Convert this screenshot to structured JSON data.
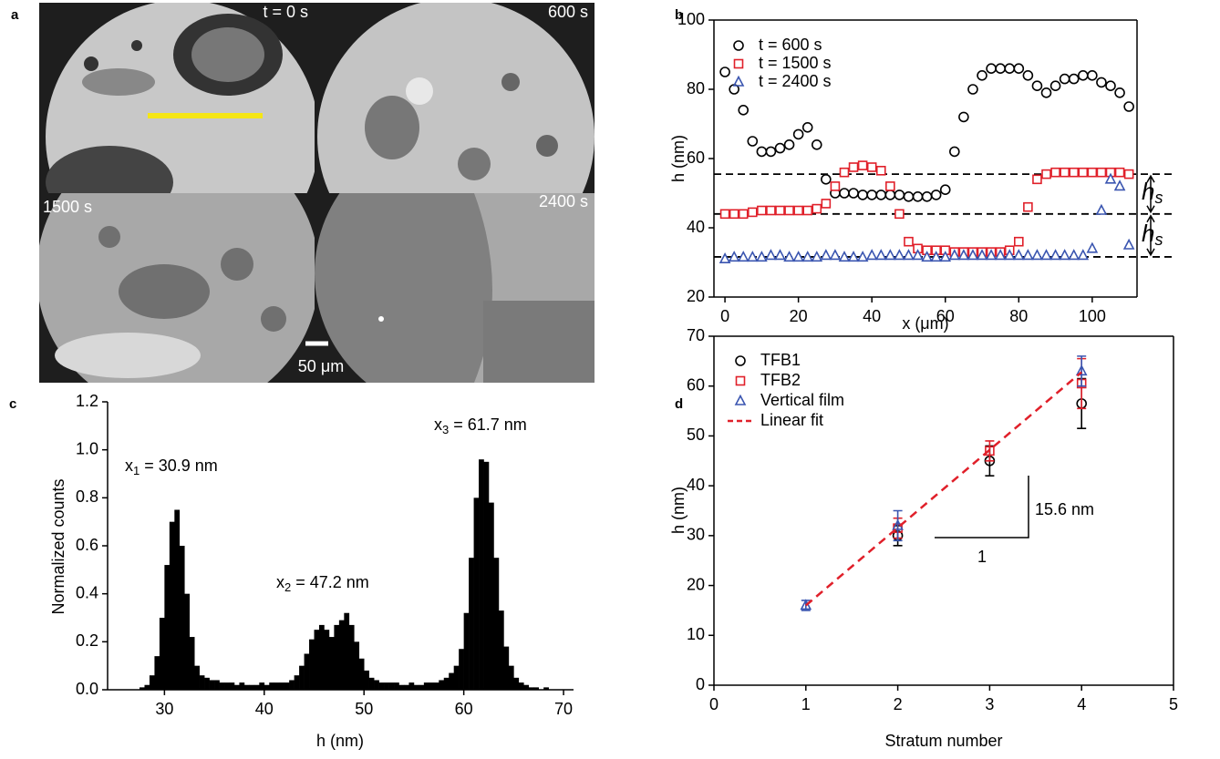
{
  "panel_a": {
    "panel_label": "a",
    "time_labels": [
      "t = 0 s",
      "600 s",
      "1500 s",
      "2400 s"
    ],
    "scale_bar": "50 μm"
  },
  "chart_data": [
    {
      "type": "scatter",
      "panel_label": "b",
      "xlabel": "x (μm)",
      "ylabel": "h (nm)",
      "xlim": [
        -3,
        112.2
      ],
      "ylim": [
        20,
        100
      ],
      "xticks": [
        0,
        20,
        40,
        60,
        80,
        100
      ],
      "yticks": [
        20,
        40,
        60,
        80,
        100
      ],
      "legend": "upper left",
      "x": [
        0,
        2.5,
        5,
        7.5,
        10,
        12.5,
        15,
        17.5,
        20,
        22.5,
        25,
        27.5,
        30,
        32.5,
        35,
        37.5,
        40,
        42.5,
        45,
        47.5,
        50,
        52.5,
        55,
        57.5,
        60,
        62.5,
        65,
        67.5,
        70,
        72.5,
        75,
        77.5,
        80,
        82.5,
        85,
        87.5,
        90,
        92.5,
        95,
        97.5,
        100,
        102.5,
        105,
        107.5,
        110
      ],
      "series": [
        {
          "name": "t = 600 s",
          "color": "#000000",
          "marker": "circle",
          "values": [
            85,
            80,
            74,
            65,
            62,
            62,
            63,
            64,
            67,
            69,
            64,
            54,
            50,
            50,
            50,
            49.5,
            49.5,
            49.5,
            49.5,
            49.5,
            49,
            49,
            49,
            49.5,
            51,
            62,
            72,
            80,
            84,
            86,
            86,
            86,
            86,
            84,
            81,
            79,
            81,
            83,
            83,
            84,
            84,
            82,
            81,
            79,
            75
          ]
        },
        {
          "name": "t = 1500 s",
          "color": "#e0202a",
          "marker": "square",
          "values": [
            44,
            44,
            44,
            44.5,
            45,
            45,
            45,
            45,
            45,
            45,
            45.5,
            47,
            52,
            56,
            57.5,
            58,
            57.5,
            56.5,
            52,
            44,
            36,
            34,
            33.5,
            33.5,
            33.5,
            33,
            33,
            33,
            33,
            33,
            33,
            33.5,
            36,
            46,
            54,
            55.5,
            56,
            56,
            56,
            56,
            56,
            56,
            56,
            56,
            55.5
          ]
        },
        {
          "name": "t = 2400 s",
          "color": "#3a55b0",
          "marker": "triangle",
          "values": [
            31,
            31.5,
            31.5,
            31.5,
            31.5,
            32,
            32,
            31.5,
            31.5,
            31.5,
            31.5,
            32,
            32,
            31.5,
            31.5,
            31.5,
            32,
            32,
            32,
            32,
            32,
            32,
            31.5,
            31.5,
            31.5,
            32,
            32,
            32,
            32,
            32,
            32,
            32,
            32,
            32,
            32,
            32,
            32,
            32,
            32,
            32,
            34,
            45,
            54,
            52,
            35
          ]
        }
      ],
      "hlines": [
        55.5,
        44,
        31.6
      ],
      "annotations": [
        {
          "base": "h",
          "sub": "s"
        },
        {
          "base": "h",
          "sub": "s"
        }
      ]
    },
    {
      "type": "histogram",
      "panel_label": "c",
      "xlabel": "h (nm)",
      "ylabel": "Normalized counts",
      "color": "#000000",
      "xlim": [
        24.3,
        71
      ],
      "ylim": [
        0,
        1.2
      ],
      "xticks": [
        30,
        40,
        50,
        60,
        70
      ],
      "yticks": [
        {
          "value": 0,
          "label": "0.0"
        },
        0.2,
        0.4,
        0.6,
        0.8,
        {
          "value": 1,
          "label": "1.0"
        },
        1.2
      ],
      "bins": [
        27,
        27.5,
        28,
        28.5,
        29,
        29.5,
        30,
        30.5,
        31,
        31.5,
        32,
        32.5,
        33,
        33.5,
        34,
        34.5,
        35,
        35.5,
        36,
        36.5,
        37,
        37.5,
        38,
        38.5,
        39,
        39.5,
        40,
        40.5,
        41,
        41.5,
        42,
        42.5,
        43,
        43.5,
        44,
        44.5,
        45,
        45.5,
        46,
        46.5,
        47,
        47.5,
        48,
        48.5,
        49,
        49.5,
        50,
        50.5,
        51,
        51.5,
        52,
        52.5,
        53,
        53.5,
        54,
        54.5,
        55,
        55.5,
        56,
        56.5,
        57,
        57.5,
        58,
        58.5,
        59,
        59.5,
        60,
        60.5,
        61,
        61.5,
        62,
        62.5,
        63,
        63.5,
        64,
        64.5,
        65,
        65.5,
        66,
        66.5,
        67,
        67.5,
        68,
        68.5,
        69
      ],
      "values": [
        0,
        0.01,
        0.02,
        0.06,
        0.14,
        0.3,
        0.52,
        0.7,
        0.75,
        0.6,
        0.4,
        0.22,
        0.1,
        0.06,
        0.05,
        0.04,
        0.04,
        0.03,
        0.03,
        0.03,
        0.02,
        0.03,
        0.02,
        0.02,
        0.02,
        0.03,
        0.02,
        0.03,
        0.03,
        0.03,
        0.03,
        0.04,
        0.06,
        0.1,
        0.15,
        0.21,
        0.25,
        0.27,
        0.25,
        0.22,
        0.27,
        0.29,
        0.32,
        0.27,
        0.2,
        0.13,
        0.08,
        0.05,
        0.04,
        0.03,
        0.03,
        0.03,
        0.03,
        0.02,
        0.02,
        0.03,
        0.02,
        0.02,
        0.03,
        0.03,
        0.03,
        0.04,
        0.05,
        0.07,
        0.1,
        0.17,
        0.32,
        0.55,
        0.8,
        0.96,
        0.95,
        0.78,
        0.55,
        0.33,
        0.18,
        0.1,
        0.05,
        0.03,
        0.02,
        0.01,
        0.01,
        0,
        0.01,
        0
      ],
      "annotations": [
        {
          "base": "x",
          "sub": "1",
          "text": " = 30.9 nm"
        },
        {
          "base": "x",
          "sub": "2",
          "text": " = 47.2 nm"
        },
        {
          "base": "x",
          "sub": "3",
          "text": " = 61.7 nm"
        }
      ]
    },
    {
      "type": "scatter",
      "panel_label": "d",
      "xlabel": "Stratum number",
      "ylabel": "h (nm)",
      "xlim": [
        0,
        5
      ],
      "ylim": [
        0,
        70
      ],
      "xticks": [
        0,
        1,
        2,
        3,
        4,
        5
      ],
      "yticks": [
        0,
        10,
        20,
        30,
        40,
        50,
        60,
        70
      ],
      "legend": "upper left",
      "series": [
        {
          "name": "TFB1",
          "color": "#000000",
          "marker": "circle",
          "x": [
            2,
            3,
            4
          ],
          "values": [
            30,
            45,
            56.5
          ],
          "errors": [
            2,
            3,
            5
          ]
        },
        {
          "name": "TFB2",
          "color": "#e0202a",
          "marker": "square",
          "x": [
            2,
            3,
            4
          ],
          "values": [
            31.5,
            47,
            60.5
          ],
          "errors": [
            2,
            2,
            5
          ]
        },
        {
          "name": "Vertical film",
          "color": "#3a55b0",
          "marker": "triangle",
          "x": [
            1,
            2,
            4
          ],
          "values": [
            16,
            32,
            63
          ],
          "errors": [
            1,
            3,
            3
          ]
        },
        {
          "name": "Linear fit",
          "color": "#e0202a",
          "marker": "dashed-line",
          "x": [
            1,
            4
          ],
          "values": [
            16,
            62.8
          ]
        }
      ],
      "annotations": [
        {
          "text": "15.6 nm"
        },
        {
          "text": "1"
        }
      ]
    }
  ]
}
